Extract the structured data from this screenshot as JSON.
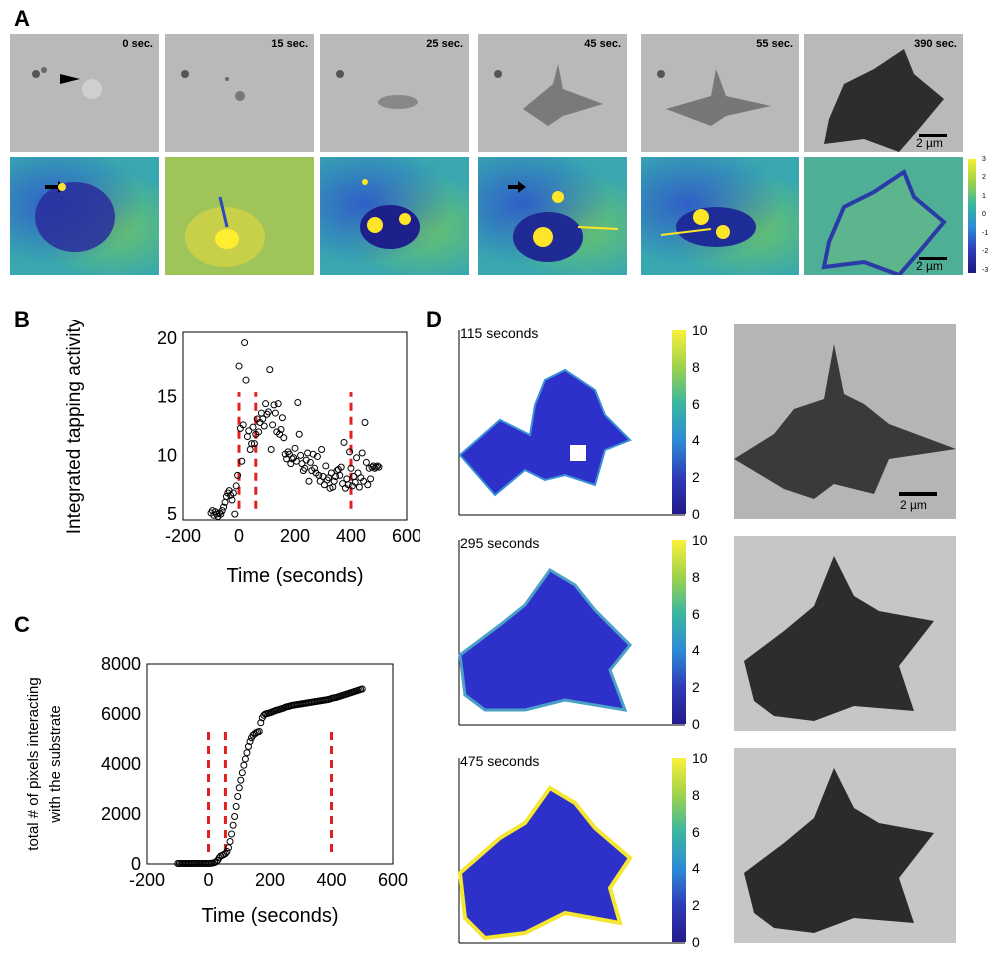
{
  "panels": {
    "A": "A",
    "B": "B",
    "C": "C",
    "D": "D"
  },
  "panelA": {
    "times": [
      "0 sec.",
      "15 sec.",
      "25 sec.",
      "45 sec.",
      "55 sec.",
      "390 sec."
    ],
    "scalebar_label": "2 µm",
    "colorbar_ticks": [
      "3",
      "2",
      "1",
      "0",
      "-1",
      "-2",
      "-3"
    ]
  },
  "panelB": {
    "ylabel": "Integrated tapping activity",
    "xlabel": "Time (seconds)"
  },
  "panelC": {
    "ylabel_line1": "total # of pixels interacting",
    "ylabel_line2": "with the substrate",
    "xlabel": "Time (seconds)"
  },
  "panelD": {
    "maps": [
      {
        "label": "115 seconds"
      },
      {
        "label": "295 seconds"
      },
      {
        "label": "475 seconds"
      }
    ],
    "colorbar_ticks": [
      "10",
      "8",
      "6",
      "4",
      "2",
      "0"
    ],
    "scalebar_label": "2 µm"
  },
  "chart_data": [
    {
      "type": "scatter",
      "title": "",
      "xlabel": "Time (seconds)",
      "ylabel": "Integrated tapping activity",
      "xlim": [
        -200,
        600
      ],
      "ylim": [
        4.5,
        20.5
      ],
      "xticks": [
        "-200",
        "0",
        "200",
        "400",
        "600"
      ],
      "yticks": [
        "5",
        "10",
        "15",
        "20"
      ],
      "vlines": [
        0,
        60,
        400
      ],
      "x": [
        -100,
        -95,
        -90,
        -85,
        -80,
        -75,
        -70,
        -65,
        -60,
        -55,
        -50,
        -45,
        -40,
        -35,
        -30,
        -25,
        -20,
        -15,
        -10,
        -5,
        0,
        5,
        10,
        15,
        20,
        25,
        30,
        35,
        40,
        45,
        50,
        55,
        60,
        65,
        70,
        75,
        80,
        85,
        90,
        95,
        100,
        105,
        110,
        115,
        120,
        125,
        130,
        135,
        140,
        145,
        150,
        155,
        160,
        165,
        170,
        175,
        180,
        185,
        190,
        195,
        200,
        205,
        210,
        215,
        220,
        225,
        230,
        235,
        240,
        245,
        250,
        255,
        260,
        265,
        270,
        275,
        280,
        285,
        290,
        295,
        300,
        305,
        310,
        315,
        320,
        325,
        330,
        335,
        340,
        345,
        350,
        355,
        360,
        365,
        370,
        375,
        380,
        385,
        390,
        395,
        400,
        405,
        410,
        415,
        420,
        425,
        430,
        435,
        440,
        445,
        450,
        455,
        460,
        465,
        470,
        475,
        480,
        485,
        490,
        495,
        500
      ],
      "y": [
        5.1,
        5.3,
        4.9,
        5.2,
        5.0,
        4.8,
        5.1,
        5.0,
        5.3,
        5.6,
        6.0,
        6.5,
        6.8,
        7.0,
        6.6,
        6.2,
        6.8,
        5.0,
        7.4,
        8.3,
        17.6,
        12.3,
        9.5,
        12.6,
        19.6,
        16.4,
        11.6,
        12.1,
        10.5,
        11.0,
        12.4,
        11.0,
        11.8,
        13.1,
        12.0,
        12.8,
        13.6,
        13.1,
        12.5,
        14.4,
        13.5,
        13.7,
        17.3,
        10.5,
        12.6,
        14.3,
        13.6,
        12.0,
        14.4,
        11.8,
        12.2,
        13.2,
        11.5,
        10.1,
        9.7,
        10.3,
        10.1,
        9.3,
        9.7,
        9.8,
        10.6,
        9.5,
        14.5,
        11.8,
        10.0,
        9.3,
        8.7,
        8.9,
        9.6,
        10.2,
        7.8,
        9.4,
        8.7,
        10.1,
        8.9,
        8.5,
        9.9,
        8.3,
        7.8,
        10.5,
        8.2,
        7.5,
        9.1,
        7.9,
        8.1,
        7.2,
        8.5,
        7.3,
        7.8,
        8.2,
        8.7,
        8.8,
        8.3,
        9.0,
        7.6,
        11.1,
        7.2,
        8.0,
        7.5,
        10.3,
        8.9,
        7.4,
        8.2,
        7.7,
        9.8,
        8.5,
        7.3,
        8.1,
        10.2,
        7.8,
        12.8,
        9.4,
        7.5,
        8.9,
        8.0,
        9.0,
        9.1,
        8.9,
        9.0,
        9.1,
        9.0
      ]
    },
    {
      "type": "scatter",
      "title": "",
      "xlabel": "Time (seconds)",
      "ylabel": "total # of pixels interacting with the substrate",
      "xlim": [
        -200,
        600
      ],
      "ylim": [
        0,
        8000
      ],
      "xticks": [
        "-200",
        "0",
        "200",
        "400",
        "600"
      ],
      "yticks": [
        "0",
        "2000",
        "4000",
        "6000",
        "8000"
      ],
      "vlines": [
        0,
        55,
        400
      ],
      "x": [
        -100,
        -95,
        -90,
        -85,
        -80,
        -75,
        -70,
        -65,
        -60,
        -55,
        -50,
        -45,
        -40,
        -35,
        -30,
        -25,
        -20,
        -15,
        -10,
        -5,
        0,
        5,
        10,
        15,
        20,
        25,
        30,
        35,
        40,
        45,
        50,
        55,
        60,
        65,
        70,
        75,
        80,
        85,
        90,
        95,
        100,
        105,
        110,
        115,
        120,
        125,
        130,
        135,
        140,
        145,
        150,
        155,
        160,
        165,
        170,
        175,
        180,
        185,
        190,
        195,
        200,
        205,
        210,
        215,
        220,
        225,
        230,
        235,
        240,
        245,
        250,
        255,
        260,
        265,
        270,
        275,
        280,
        285,
        290,
        295,
        300,
        305,
        310,
        315,
        320,
        325,
        330,
        335,
        340,
        345,
        350,
        355,
        360,
        365,
        370,
        375,
        380,
        385,
        390,
        395,
        400,
        405,
        410,
        415,
        420,
        425,
        430,
        435,
        440,
        445,
        450,
        455,
        460,
        465,
        470,
        475,
        480,
        485,
        490,
        495,
        500
      ],
      "y": [
        20,
        20,
        20,
        20,
        20,
        20,
        20,
        20,
        20,
        20,
        20,
        20,
        20,
        20,
        20,
        20,
        20,
        20,
        20,
        20,
        20,
        25,
        30,
        40,
        60,
        90,
        150,
        250,
        320,
        350,
        380,
        420,
        500,
        650,
        900,
        1200,
        1550,
        1900,
        2300,
        2700,
        3050,
        3350,
        3650,
        3950,
        4200,
        4450,
        4700,
        4900,
        5050,
        5150,
        5200,
        5250,
        5280,
        5300,
        5650,
        5850,
        5950,
        6000,
        6020,
        6030,
        6050,
        6070,
        6100,
        6120,
        6150,
        6160,
        6180,
        6200,
        6220,
        6240,
        6270,
        6290,
        6300,
        6320,
        6340,
        6350,
        6360,
        6370,
        6380,
        6390,
        6400,
        6410,
        6420,
        6430,
        6440,
        6450,
        6460,
        6470,
        6480,
        6490,
        6500,
        6510,
        6520,
        6530,
        6540,
        6550,
        6560,
        6570,
        6580,
        6600,
        6620,
        6640,
        6650,
        6660,
        6680,
        6700,
        6720,
        6740,
        6760,
        6780,
        6800,
        6820,
        6840,
        6860,
        6880,
        6900,
        6920,
        6940,
        6960,
        6980,
        7000
      ]
    }
  ]
}
